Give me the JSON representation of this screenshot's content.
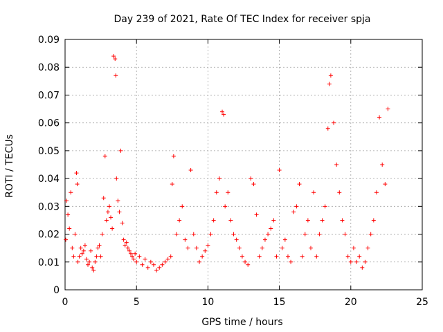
{
  "chart_data": {
    "type": "scatter",
    "title": "Day 239 of 2021, Rate Of TEC Index for receiver spja",
    "xlabel": "GPS time / hours",
    "ylabel": "ROTI / TECUs",
    "xlim": [
      0,
      25
    ],
    "ylim": [
      0,
      0.09
    ],
    "xticks": [
      "0",
      "5",
      "10",
      "15",
      "20",
      "25"
    ],
    "yticks": [
      "0",
      "0.01",
      "0.02",
      "0.03",
      "0.04",
      "0.05",
      "0.06",
      "0.07",
      "0.08",
      "0.09"
    ],
    "grid": true,
    "marker": "+",
    "color": "#ff0000",
    "series": [
      {
        "name": "ROTI",
        "x": [
          0.05,
          0.1,
          0.2,
          0.3,
          0.4,
          0.5,
          0.6,
          0.7,
          0.8,
          0.85,
          0.9,
          1.0,
          1.1,
          1.2,
          1.3,
          1.4,
          1.5,
          1.6,
          1.7,
          1.8,
          1.9,
          2.0,
          2.1,
          2.2,
          2.3,
          2.4,
          2.5,
          2.6,
          2.7,
          2.8,
          2.9,
          3.0,
          3.1,
          3.2,
          3.3,
          3.4,
          3.5,
          3.55,
          3.6,
          3.7,
          3.8,
          3.9,
          4.0,
          4.1,
          4.2,
          4.3,
          4.4,
          4.5,
          4.6,
          4.7,
          4.8,
          4.9,
          5.0,
          5.2,
          5.4,
          5.6,
          5.8,
          6.0,
          6.2,
          6.4,
          6.6,
          6.8,
          7.0,
          7.2,
          7.4,
          7.5,
          7.6,
          7.8,
          8.0,
          8.2,
          8.4,
          8.6,
          8.8,
          9.0,
          9.2,
          9.4,
          9.6,
          9.8,
          10.0,
          10.2,
          10.4,
          10.6,
          10.8,
          11.0,
          11.1,
          11.2,
          11.4,
          11.6,
          11.8,
          12.0,
          12.2,
          12.4,
          12.6,
          12.8,
          13.0,
          13.2,
          13.4,
          13.6,
          13.8,
          14.0,
          14.2,
          14.4,
          14.6,
          14.8,
          15.0,
          15.2,
          15.4,
          15.6,
          15.8,
          16.0,
          16.2,
          16.4,
          16.6,
          16.8,
          17.0,
          17.2,
          17.4,
          17.6,
          17.8,
          18.0,
          18.2,
          18.4,
          18.5,
          18.6,
          18.8,
          19.0,
          19.2,
          19.4,
          19.6,
          19.8,
          20.0,
          20.2,
          20.4,
          20.6,
          20.8,
          21.0,
          21.2,
          21.4,
          21.6,
          21.8,
          22.0,
          22.2,
          22.4,
          22.6
        ],
        "y": [
          0.018,
          0.032,
          0.027,
          0.022,
          0.035,
          0.015,
          0.012,
          0.02,
          0.042,
          0.038,
          0.01,
          0.012,
          0.015,
          0.013,
          0.014,
          0.016,
          0.011,
          0.009,
          0.01,
          0.014,
          0.008,
          0.007,
          0.01,
          0.012,
          0.015,
          0.016,
          0.012,
          0.02,
          0.033,
          0.048,
          0.025,
          0.028,
          0.03,
          0.026,
          0.022,
          0.084,
          0.083,
          0.077,
          0.04,
          0.032,
          0.028,
          0.05,
          0.024,
          0.018,
          0.016,
          0.017,
          0.015,
          0.014,
          0.013,
          0.012,
          0.011,
          0.013,
          0.01,
          0.012,
          0.009,
          0.011,
          0.008,
          0.01,
          0.009,
          0.007,
          0.008,
          0.009,
          0.01,
          0.011,
          0.012,
          0.038,
          0.048,
          0.02,
          0.025,
          0.03,
          0.018,
          0.015,
          0.043,
          0.02,
          0.015,
          0.01,
          0.012,
          0.014,
          0.016,
          0.02,
          0.025,
          0.035,
          0.04,
          0.064,
          0.063,
          0.03,
          0.035,
          0.025,
          0.02,
          0.018,
          0.015,
          0.012,
          0.01,
          0.009,
          0.04,
          0.038,
          0.027,
          0.012,
          0.015,
          0.018,
          0.02,
          0.022,
          0.025,
          0.012,
          0.043,
          0.015,
          0.018,
          0.012,
          0.01,
          0.028,
          0.03,
          0.038,
          0.012,
          0.02,
          0.025,
          0.015,
          0.035,
          0.012,
          0.02,
          0.025,
          0.03,
          0.058,
          0.074,
          0.077,
          0.06,
          0.045,
          0.035,
          0.025,
          0.02,
          0.012,
          0.01,
          0.015,
          0.01,
          0.012,
          0.008,
          0.01,
          0.015,
          0.02,
          0.025,
          0.035,
          0.062,
          0.045,
          0.038,
          0.065
        ]
      }
    ]
  }
}
